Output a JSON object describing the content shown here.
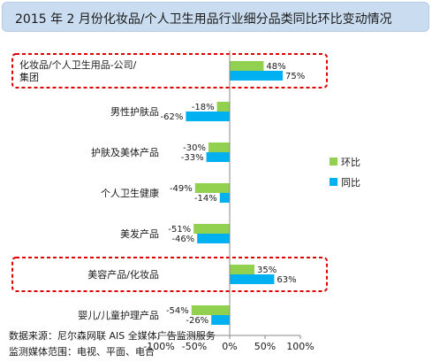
{
  "colors": {
    "huanbi": "#92d050",
    "tongbi": "#00b0f0",
    "highlight_border": "#e00000",
    "title_bg": "#c9dcf0"
  },
  "chart_data": {
    "type": "bar",
    "orientation": "horizontal",
    "title": "2015 年 2 月份化妆品/个人卫生用品行业细分品类同比环比变动情况",
    "categories": [
      "化妆品/个人卫生用品-公司/集团",
      "男性护肤品",
      "护肤及美体产品",
      "个人卫生健康",
      "美发产品",
      "美容产品/化妆品",
      "婴儿/儿童护理产品"
    ],
    "category_lines": [
      [
        "化妆品/个人卫生用品-公司/",
        "集团"
      ],
      [
        "男性护肤品"
      ],
      [
        "护肤及美体产品"
      ],
      [
        "个人卫生健康"
      ],
      [
        "美发产品"
      ],
      [
        "美容产品/化妆品"
      ],
      [
        "婴儿/儿童护理产品"
      ]
    ],
    "series": [
      {
        "name": "环比",
        "values": [
          48,
          -18,
          -30,
          -49,
          -51,
          35,
          -54
        ],
        "labels": [
          "48%",
          "-18%",
          "-30%",
          "-49%",
          "-51%",
          "35%",
          "-54%"
        ]
      },
      {
        "name": "同比",
        "values": [
          75,
          -62,
          -33,
          -14,
          -46,
          63,
          -26
        ],
        "labels": [
          "75%",
          "-62%",
          "-33%",
          "-14%",
          "-46%",
          "63%",
          "-26%"
        ]
      }
    ],
    "xlim": [
      -100,
      100
    ],
    "xticks": [
      -100,
      -50,
      0,
      50,
      100
    ],
    "xtick_labels": [
      "-100%",
      "-50%",
      "0%",
      "50%",
      "100%"
    ],
    "highlighted_categories": [
      0,
      5
    ],
    "legend_position": "right",
    "grid": false
  },
  "footer": {
    "source": "数据来源：尼尔森网联 AIS 全媒体广告监测服务",
    "scope": "监测媒体范围：电视、平面、电台"
  }
}
